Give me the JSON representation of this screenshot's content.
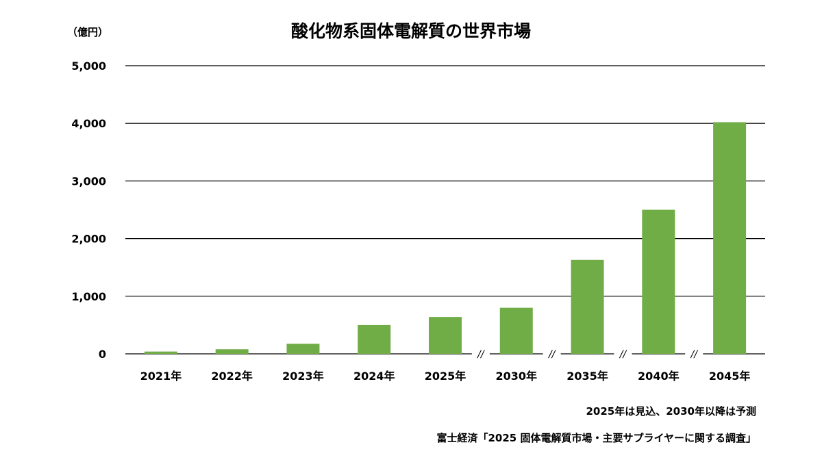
{
  "chart_data": {
    "type": "bar",
    "title": "酸化物系固体電解質の世界市場",
    "ylabel": "（億円）",
    "categories": [
      "2021年",
      "2022年",
      "2023年",
      "2024年",
      "2025年",
      "2030年",
      "2035年",
      "2040年",
      "2045年"
    ],
    "values": [
      40,
      80,
      175,
      500,
      640,
      800,
      1630,
      2500,
      4020
    ],
    "ylim": [
      0,
      5000
    ],
    "yticks": [
      0,
      1000,
      2000,
      3000,
      4000,
      5000
    ],
    "ytick_labels": [
      "0",
      "1,000",
      "2,000",
      "3,000",
      "4,000",
      "5,000"
    ],
    "axis_break_marker": "//",
    "axis_breaks_after": [
      "2025年",
      "2030年",
      "2035年",
      "2040年"
    ],
    "grid": true,
    "bar_color": "#70AD47",
    "annotations": [
      "2025年は見込、2030年以降は予測",
      "富士経済「2025 固体電解質市場・主要サプライヤーに関する調査」"
    ]
  }
}
